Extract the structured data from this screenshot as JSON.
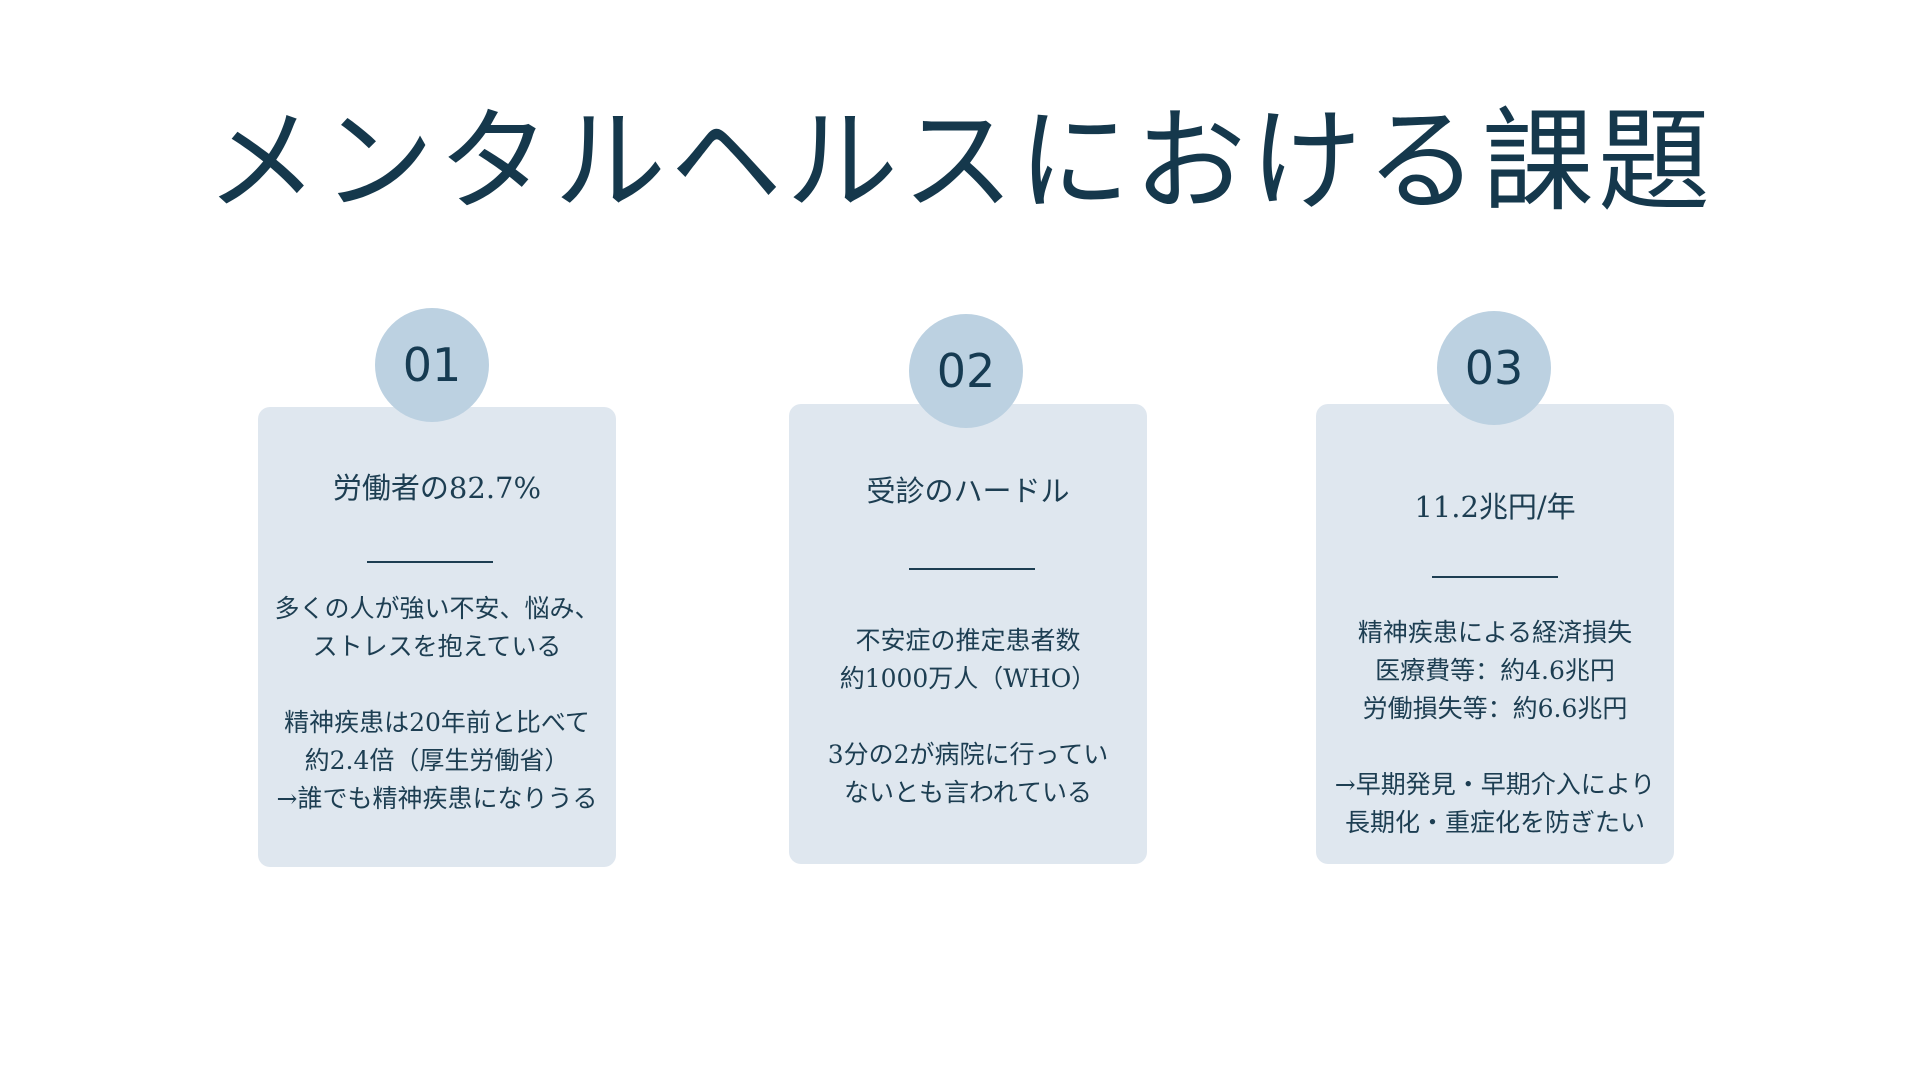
{
  "title": "メンタルヘルスにおける課題",
  "cards": [
    {
      "number": "01",
      "heading": "労働者の82.7%",
      "lines": [
        "多くの人が強い不安、悩み、",
        "ストレスを抱えている",
        "",
        "精神疾患は20年前と比べて",
        "約2.4倍（厚生労働省）",
        "→誰でも精神疾患になりうる"
      ]
    },
    {
      "number": "02",
      "heading": "受診のハードル",
      "lines": [
        "不安症の推定患者数",
        "約1000万人（WHO）",
        "",
        "3分の2が病院に行ってい",
        "ないとも言われている"
      ]
    },
    {
      "number": "03",
      "heading": "11.2兆円/年",
      "lines": [
        "精神疾患による経済損失",
        "医療費等：約4.6兆円",
        "労働損失等：約6.6兆円",
        "",
        "→早期発見・早期介入により",
        "長期化・重症化を防ぎたい"
      ]
    }
  ],
  "colors": {
    "title": "#15384c",
    "card_background": "#dfe7ef",
    "badge_background": "#bcd1e1",
    "text": "#1d3e52"
  }
}
